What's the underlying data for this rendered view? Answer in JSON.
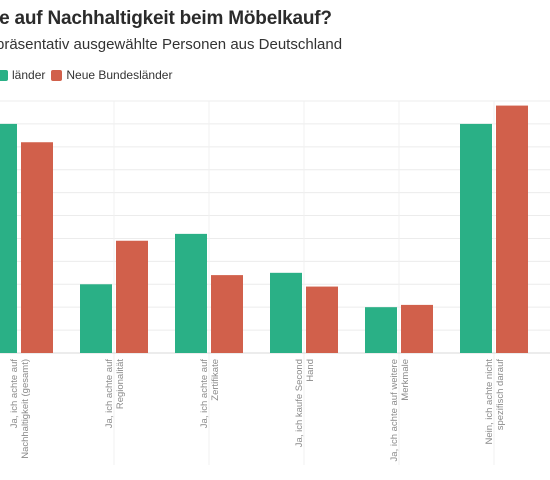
{
  "title": "ie auf Nachhaltigkeit beim Möbelkauf?",
  "subtitle": "präsentativ ausgewählte Personen aus Deutschland",
  "legend": [
    {
      "label": "länder",
      "color": "#2ab086"
    },
    {
      "label": "Neue Bundesländer",
      "color": "#d1604b"
    }
  ],
  "chart_data": {
    "type": "bar",
    "title": "ie auf Nachhaltigkeit beim Möbelkauf?",
    "subtitle": "präsentativ ausgewählte Personen aus Deutschland",
    "categories": [
      [
        "Ja, ich achte auf",
        "Nachhaltigkeit (gesamt)"
      ],
      [
        "Ja, ich achte auf",
        "Regionalität"
      ],
      [
        "Ja, ich achte auf",
        "Zertifikate"
      ],
      [
        "Ja, ich kaufe Second",
        "Hand"
      ],
      [
        "Ja, ich achte auf weitere",
        "Merkmale"
      ],
      [
        "Nein, ich achte nicht",
        "spezifisch darauf"
      ]
    ],
    "series": [
      {
        "name": "länder",
        "color": "#2ab086",
        "values": [
          50,
          15,
          26,
          17.5,
          10,
          50
        ]
      },
      {
        "name": "Neue Bundesländer",
        "color": "#d1604b",
        "values": [
          46,
          24.5,
          17,
          14.5,
          10.5,
          54
        ]
      }
    ],
    "ylim": [
      0,
      55
    ],
    "grid": true,
    "legend_position": "top-left"
  }
}
